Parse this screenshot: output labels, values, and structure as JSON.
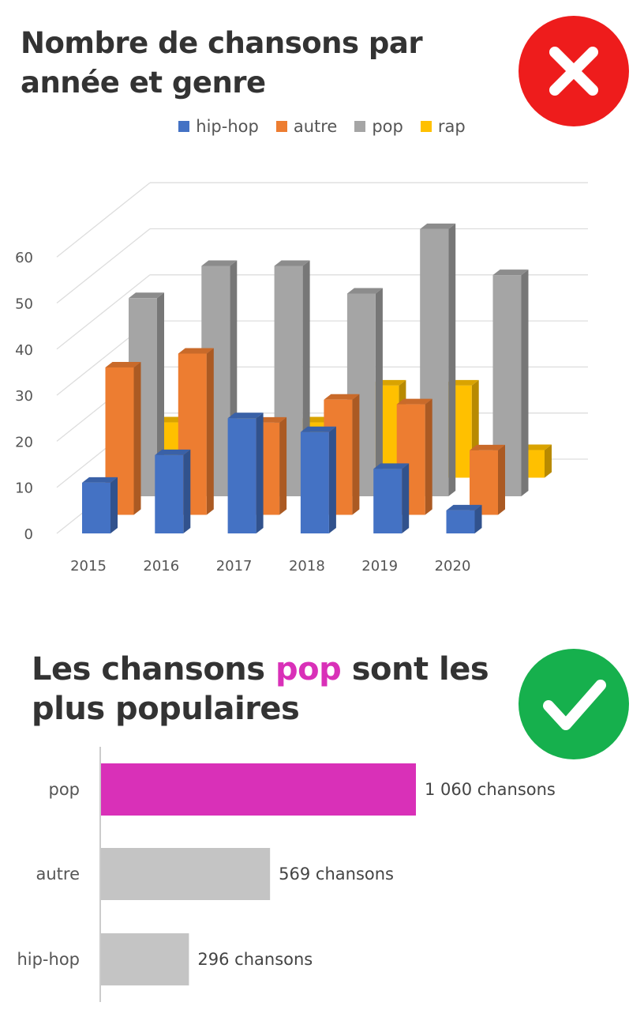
{
  "top": {
    "title": "Nombre de chansons par année et genre",
    "verdict_icon": "cross-icon",
    "verdict_color": "#ee1c1c"
  },
  "bottom": {
    "title_before": "Les chansons ",
    "title_highlight": "pop",
    "title_after": " sont les plus populaires",
    "highlight_color": "#d930b8",
    "verdict_icon": "checkmark-icon",
    "verdict_color": "#16b04d"
  },
  "chart_data": [
    {
      "type": "bar",
      "style": "3d-clustered-column",
      "categories": [
        "2015",
        "2016",
        "2017",
        "2018",
        "2019",
        "2020"
      ],
      "series": [
        {
          "name": "hip-hop",
          "color": "#4472c4",
          "values": [
            11,
            17,
            25,
            22,
            14,
            5
          ]
        },
        {
          "name": "autre",
          "color": "#ed7d31",
          "values": [
            32,
            35,
            20,
            25,
            24,
            14
          ]
        },
        {
          "name": "pop",
          "color": "#a5a5a5",
          "values": [
            43,
            50,
            50,
            44,
            58,
            48
          ]
        },
        {
          "name": "rap",
          "color": "#ffc000",
          "values": [
            12,
            12,
            12,
            20,
            20,
            6
          ]
        }
      ],
      "yticks": [
        0,
        10,
        20,
        30,
        40,
        50,
        60
      ],
      "ylim": [
        0,
        60
      ],
      "grid": true,
      "legend_position": "top"
    },
    {
      "type": "bar",
      "orientation": "horizontal",
      "categories": [
        "pop",
        "autre",
        "hip-hop"
      ],
      "values": [
        1060,
        569,
        296
      ],
      "data_labels": [
        "1 060 chansons",
        "569 chansons",
        "296 chansons"
      ],
      "colors": [
        "#d930b8",
        "#c4c4c4",
        "#c4c4c4"
      ]
    }
  ]
}
